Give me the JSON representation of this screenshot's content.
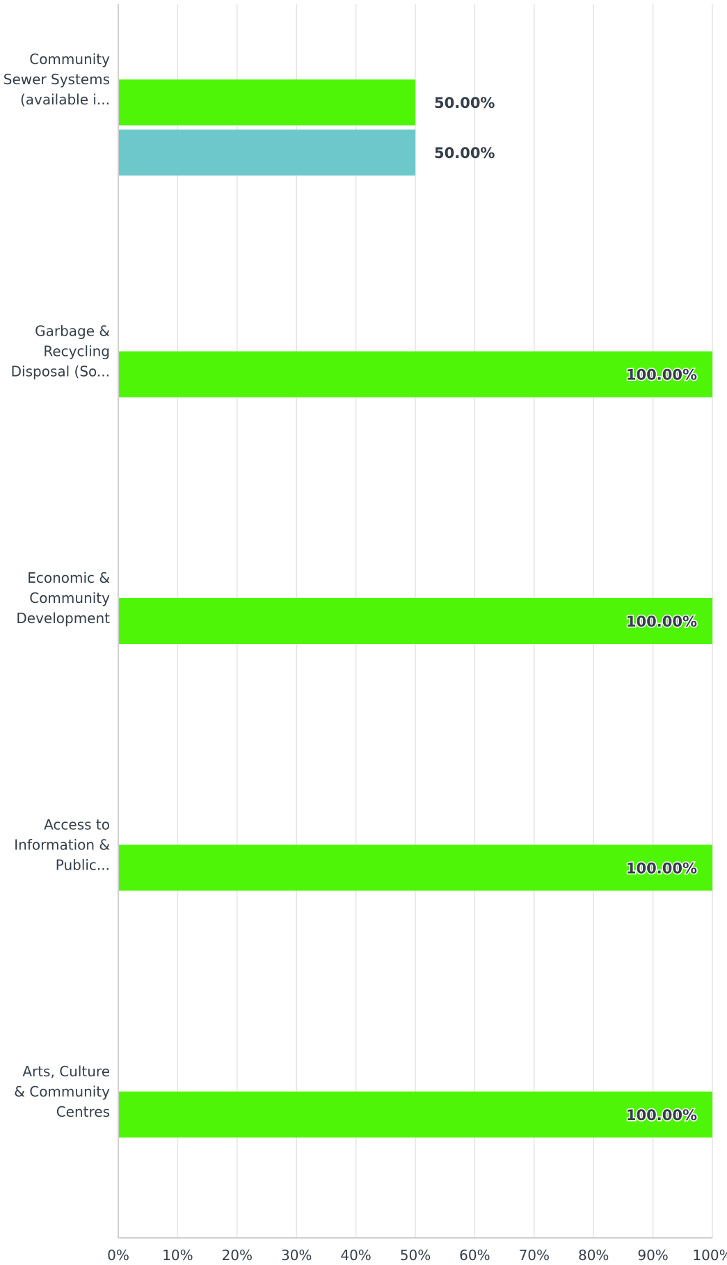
{
  "chart_data": {
    "type": "bar",
    "orientation": "horizontal",
    "categories": [
      [
        "Community",
        "Sewer Systems",
        "(available i..."
      ],
      [
        "Garbage &",
        "Recycling",
        "Disposal (So..."
      ],
      [
        "Economic &",
        "Community",
        "Development"
      ],
      [
        "Access to",
        "Information &",
        "Public..."
      ],
      [
        "Arts, Culture",
        "& Community",
        "Centres"
      ]
    ],
    "series": [
      {
        "color": "#4ff507",
        "values": [
          50,
          100,
          100,
          100,
          100
        ],
        "labels": [
          "50.00%",
          "100.00%",
          "100.00%",
          "100.00%",
          "100.00%"
        ]
      },
      {
        "color": "#6cc8cb",
        "values": [
          50,
          null,
          null,
          null,
          null
        ],
        "labels": [
          "50.00%",
          "",
          "",
          "",
          ""
        ]
      }
    ],
    "xlim": [
      0,
      100
    ],
    "x_ticks": [
      "0%",
      "10%",
      "20%",
      "30%",
      "40%",
      "50%",
      "60%",
      "70%",
      "80%",
      "90%",
      "100%"
    ],
    "grid": true,
    "title": "",
    "xlabel": "",
    "ylabel": ""
  }
}
